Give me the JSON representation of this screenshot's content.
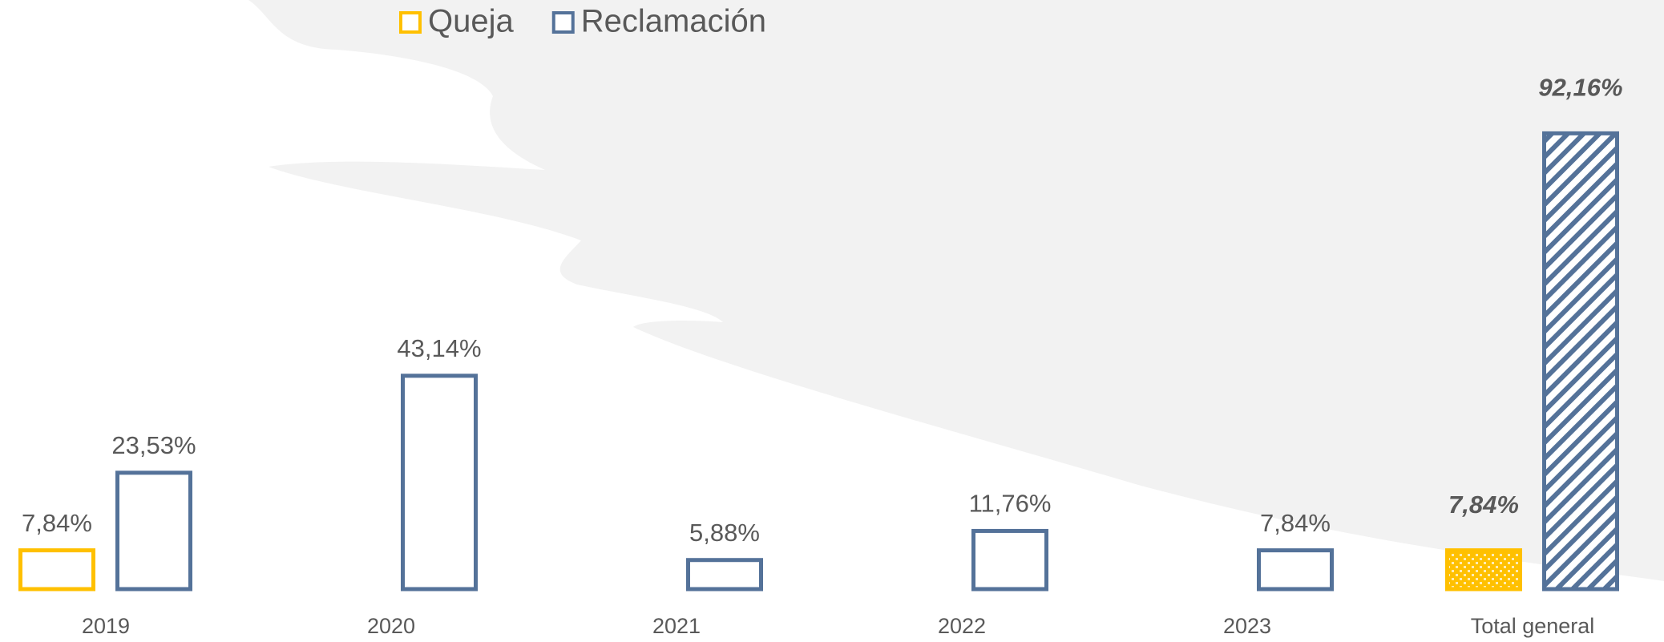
{
  "chart_data": {
    "type": "bar",
    "categories": [
      "2019",
      "2020",
      "2021",
      "2022",
      "2023",
      "Total general"
    ],
    "series": [
      {
        "name": "Queja",
        "color": "#FFC000",
        "values": [
          7.84,
          null,
          null,
          null,
          null,
          7.84
        ],
        "value_labels": [
          "7,84%",
          null,
          null,
          null,
          null,
          "7,84%"
        ]
      },
      {
        "name": "Reclamación",
        "color": "#547299",
        "values": [
          23.53,
          43.14,
          5.88,
          11.76,
          7.84,
          92.16
        ],
        "value_labels": [
          "23,53%",
          "43,14%",
          "5,88%",
          "11,76%",
          "7,84%",
          "92,16%"
        ]
      }
    ],
    "ylim": [
      0,
      100
    ],
    "legend": "top"
  }
}
